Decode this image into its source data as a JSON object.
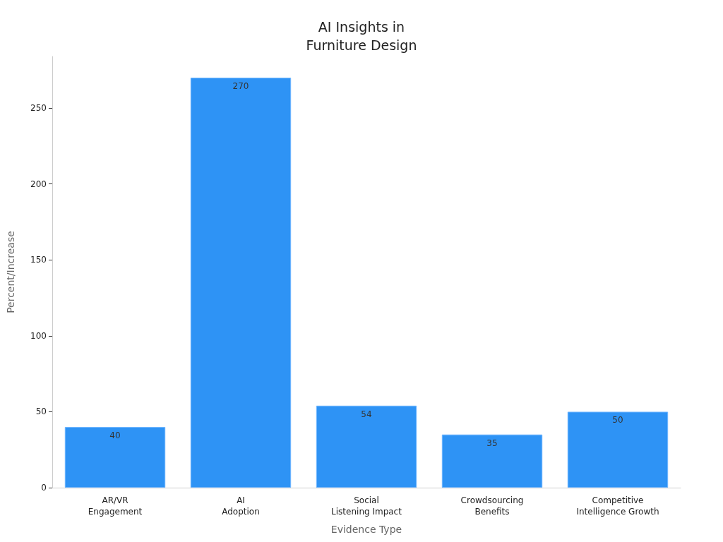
{
  "chart_data": {
    "type": "bar",
    "title": "AI Insights in\nFurniture Design",
    "xlabel": "Evidence Type",
    "ylabel": "Percent/Increase",
    "categories": [
      "AR/VR\nEngagement",
      "AI\nAdoption",
      "Social\nListening Impact",
      "Crowdsourcing\nBenefits",
      "Competitive\nIntelligence Growth"
    ],
    "values": [
      40,
      270,
      54,
      35,
      50
    ],
    "color": "#2e93f5",
    "ylim": [
      0,
      284
    ],
    "yticks": [
      0,
      50,
      100,
      150,
      200,
      250
    ],
    "grid": false,
    "data_labels": true
  }
}
